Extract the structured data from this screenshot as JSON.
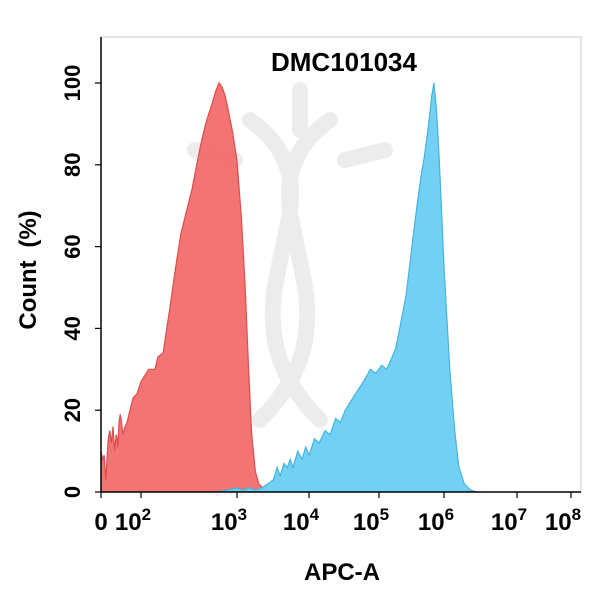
{
  "chart_data": {
    "type": "area",
    "title": "DMC101034",
    "xlabel": "APC-A",
    "ylabel": "Count (%)",
    "x_scale": "biexponential",
    "xlim": [
      0,
      100000000
    ],
    "ylim": [
      0,
      100
    ],
    "grid": false,
    "legend": "none",
    "x_ticks": [
      {
        "value": 0,
        "base": "0",
        "exp": ""
      },
      {
        "value": 100,
        "base": "10",
        "exp": "2"
      },
      {
        "value": 1000,
        "base": "10",
        "exp": "3"
      },
      {
        "value": 10000,
        "base": "10",
        "exp": "4"
      },
      {
        "value": 100000,
        "base": "10",
        "exp": "5"
      },
      {
        "value": 1000000,
        "base": "10",
        "exp": "6"
      },
      {
        "value": 10000000,
        "base": "10",
        "exp": "7"
      },
      {
        "value": 100000000,
        "base": "10",
        "exp": "8"
      }
    ],
    "y_ticks": [
      0,
      20,
      40,
      60,
      80,
      100
    ],
    "series": [
      {
        "color": "#f36b6b",
        "stroke": "#d94f4f",
        "points": [
          [
            0,
            10
          ],
          [
            4,
            8
          ],
          [
            8,
            9
          ],
          [
            12,
            3
          ],
          [
            18,
            13
          ],
          [
            22,
            15
          ],
          [
            26,
            12
          ],
          [
            30,
            16
          ],
          [
            34,
            10
          ],
          [
            38,
            14
          ],
          [
            40,
            13
          ],
          [
            42,
            11
          ],
          [
            45,
            17
          ],
          [
            48,
            19
          ],
          [
            50,
            18
          ],
          [
            55,
            14
          ],
          [
            60,
            16
          ],
          [
            65,
            17
          ],
          [
            70,
            19
          ],
          [
            80,
            23
          ],
          [
            90,
            24
          ],
          [
            100,
            27
          ],
          [
            120,
            30
          ],
          [
            140,
            30
          ],
          [
            150,
            33
          ],
          [
            170,
            34
          ],
          [
            180,
            38
          ],
          [
            200,
            45
          ],
          [
            230,
            55
          ],
          [
            260,
            63
          ],
          [
            300,
            69
          ],
          [
            340,
            74
          ],
          [
            380,
            80
          ],
          [
            420,
            85
          ],
          [
            460,
            89
          ],
          [
            500,
            92
          ],
          [
            550,
            95
          ],
          [
            600,
            98
          ],
          [
            650,
            100
          ],
          [
            700,
            99
          ],
          [
            750,
            97
          ],
          [
            800,
            94
          ],
          [
            900,
            88
          ],
          [
            1000,
            81
          ],
          [
            1150,
            67
          ],
          [
            1300,
            50
          ],
          [
            1450,
            30
          ],
          [
            1600,
            14
          ],
          [
            1800,
            5
          ],
          [
            2000,
            2
          ],
          [
            2300,
            1
          ],
          [
            2600,
            0
          ]
        ]
      },
      {
        "color": "#69cdf2",
        "stroke": "#46b3dd",
        "points": [
          [
            600,
            0
          ],
          [
            800,
            0.5
          ],
          [
            1000,
            1
          ],
          [
            1200,
            0.5
          ],
          [
            1500,
            1
          ],
          [
            1800,
            0.5
          ],
          [
            2200,
            1
          ],
          [
            2700,
            2
          ],
          [
            3200,
            3
          ],
          [
            3600,
            6
          ],
          [
            4000,
            4
          ],
          [
            4500,
            7
          ],
          [
            5000,
            6
          ],
          [
            5500,
            8
          ],
          [
            6000,
            6
          ],
          [
            7000,
            10
          ],
          [
            8000,
            8
          ],
          [
            9000,
            11
          ],
          [
            10000,
            9
          ],
          [
            12000,
            13
          ],
          [
            14000,
            12
          ],
          [
            17000,
            15
          ],
          [
            20000,
            14
          ],
          [
            24000,
            18
          ],
          [
            28000,
            17
          ],
          [
            33000,
            20
          ],
          [
            39000,
            22
          ],
          [
            46000,
            24
          ],
          [
            55000,
            26
          ],
          [
            65000,
            28
          ],
          [
            75000,
            30
          ],
          [
            90000,
            29
          ],
          [
            110000,
            31
          ],
          [
            130000,
            30
          ],
          [
            150000,
            32
          ],
          [
            180000,
            35
          ],
          [
            220000,
            42
          ],
          [
            260000,
            48
          ],
          [
            300000,
            56
          ],
          [
            350000,
            65
          ],
          [
            400000,
            72
          ],
          [
            450000,
            78
          ],
          [
            500000,
            82
          ],
          [
            550000,
            87
          ],
          [
            600000,
            92
          ],
          [
            650000,
            97
          ],
          [
            700000,
            100
          ],
          [
            760000,
            94
          ],
          [
            830000,
            84
          ],
          [
            900000,
            72
          ],
          [
            1000000,
            55
          ],
          [
            1200000,
            30
          ],
          [
            1400000,
            15
          ],
          [
            1600000,
            6
          ],
          [
            1900000,
            2
          ],
          [
            2300000,
            0.5
          ],
          [
            2800000,
            0
          ]
        ]
      }
    ]
  }
}
